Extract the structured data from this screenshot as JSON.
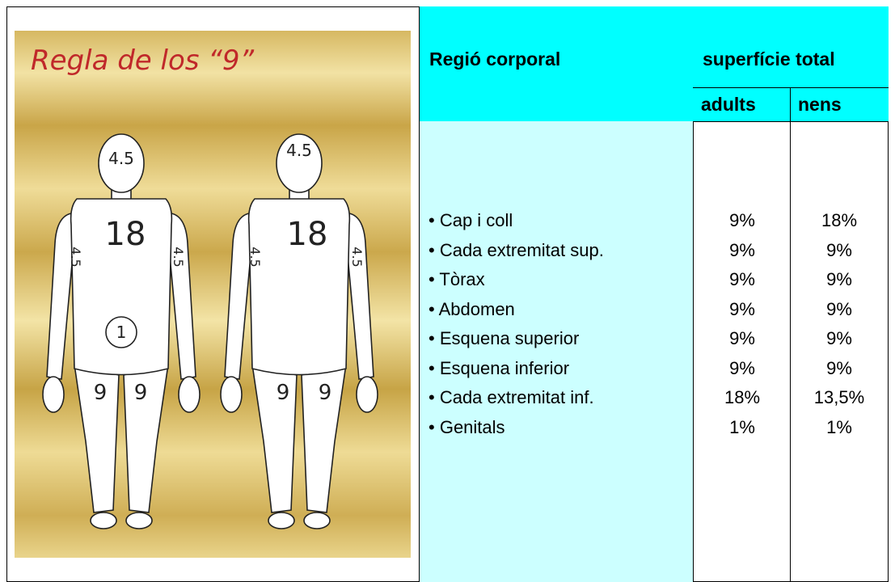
{
  "figure": {
    "title": "Regla de los “9”",
    "front": {
      "head": "4.5",
      "trunk": "18",
      "left_arm": "4.5",
      "right_arm": "4.5",
      "genitals": "1",
      "left_leg": "9",
      "right_leg": "9"
    },
    "back": {
      "head": "4.5",
      "trunk": "18",
      "left_arm": "4.5",
      "right_arm": "4.5",
      "left_leg": "9",
      "right_leg": "9"
    }
  },
  "table": {
    "header": {
      "region": "Regió corporal",
      "total": "superfície total",
      "adults": "adults",
      "children": "nens"
    },
    "rows": [
      [
        "Cap i coll",
        "9%",
        "18%"
      ],
      [
        "Cada extremitat sup.",
        "9%",
        "9%"
      ],
      [
        "Tòrax",
        "9%",
        "9%"
      ],
      [
        "Abdomen",
        "9%",
        "9%"
      ],
      [
        "Esquena superior",
        "9%",
        "9%"
      ],
      [
        "Esquena inferior",
        "9%",
        "9%"
      ],
      [
        "Cada extremitat inf.",
        "18%",
        "13,5%"
      ],
      [
        "Genitals",
        "1%",
        "1%"
      ]
    ]
  }
}
